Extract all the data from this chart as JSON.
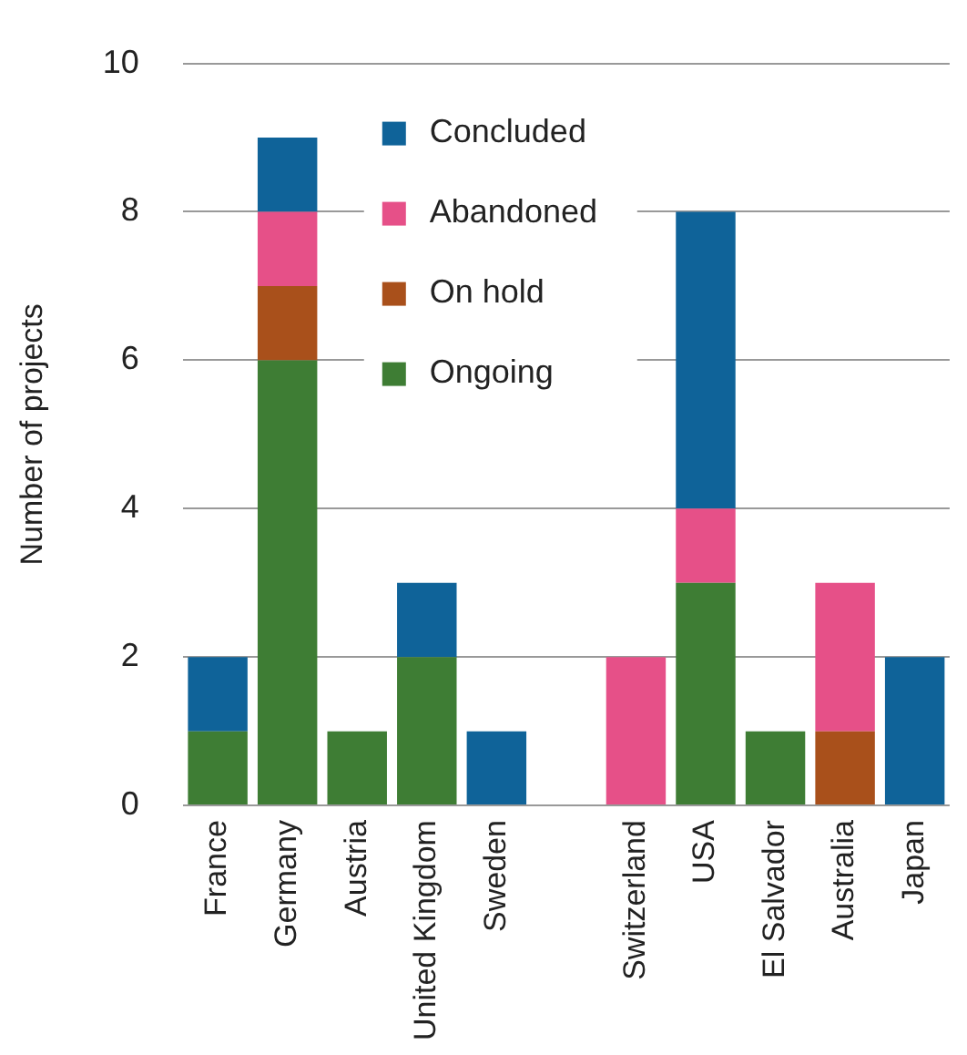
{
  "chart_data": {
    "type": "bar",
    "stacked": true,
    "ylabel": "Number of projects",
    "categories": [
      "France",
      "Germany",
      "Austria",
      "United Kingdom",
      "Sweden",
      null,
      "Switzerland",
      "USA",
      "El Salvador",
      "Australia",
      "Japan"
    ],
    "series": [
      {
        "name": "Ongoing",
        "color": "#3e7d34",
        "values": [
          1,
          6,
          1,
          2,
          0,
          null,
          0,
          3,
          1,
          0,
          0
        ]
      },
      {
        "name": "On hold",
        "color": "#a9501b",
        "values": [
          0,
          1,
          0,
          0,
          0,
          null,
          0,
          0,
          0,
          1,
          0
        ]
      },
      {
        "name": "Abandoned",
        "color": "#e65088",
        "values": [
          0,
          1,
          0,
          0,
          0,
          null,
          2,
          1,
          0,
          2,
          0
        ]
      },
      {
        "name": "Concluded",
        "color": "#0f6399",
        "values": [
          1,
          1,
          0,
          1,
          1,
          null,
          0,
          4,
          0,
          0,
          2
        ]
      }
    ],
    "ylim": [
      0,
      10
    ],
    "yticks": [
      0,
      2,
      4,
      6,
      8,
      10
    ],
    "grid": "y",
    "legend": "top"
  }
}
